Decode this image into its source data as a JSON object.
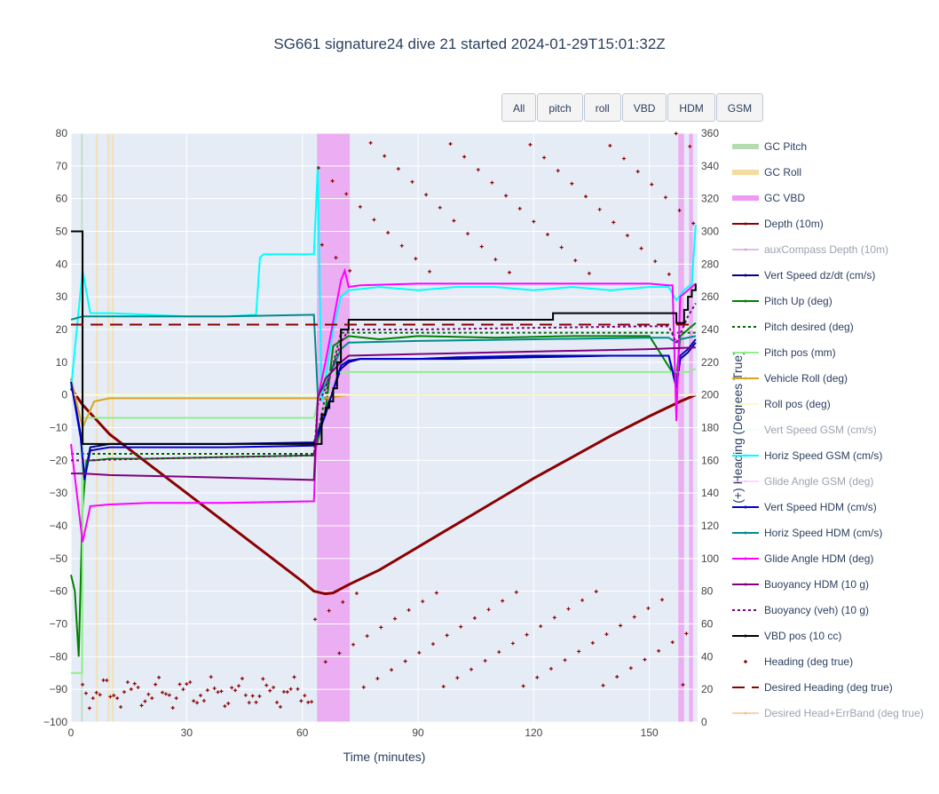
{
  "title": "SG661 signature24 dive 21 started 2024-01-29T15:01:32Z",
  "buttons": [
    "All",
    "pitch",
    "roll",
    "VBD",
    "HDM",
    "GSM"
  ],
  "chart_data": {
    "type": "line",
    "xlabel": "Time (minutes)",
    "ylabel": "",
    "y2label": "(+) Heading (Degrees True)",
    "xlim": [
      0,
      162.5
    ],
    "ylim": [
      -100,
      80
    ],
    "y2lim": [
      0,
      360
    ],
    "xticks": [
      0,
      30,
      60,
      90,
      120,
      150
    ],
    "yticks": [
      80,
      70,
      60,
      50,
      40,
      30,
      20,
      10,
      0,
      -10,
      -20,
      -30,
      -40,
      -50,
      -60,
      -70,
      -80,
      -90,
      -100
    ],
    "y2ticks": [
      360,
      340,
      320,
      300,
      280,
      260,
      240,
      220,
      200,
      180,
      160,
      140,
      120,
      100,
      80,
      60,
      40,
      20,
      0
    ],
    "grid": true,
    "legend_position": "right",
    "bands": [
      {
        "name": "GC Pitch",
        "color": "#b5dcb0",
        "x": [
          [
            2.6,
            3.0
          ]
        ]
      },
      {
        "name": "GC Roll",
        "color": "#f3dca0",
        "x": [
          [
            6.5,
            6.8
          ],
          [
            9.5,
            9.8
          ],
          [
            10.6,
            10.9
          ]
        ]
      },
      {
        "name": "GC VBD",
        "color": "#ee99f2",
        "x": [
          [
            63.8,
            72.3
          ],
          [
            157.5,
            159.0
          ],
          [
            160.3,
            161.3
          ]
        ]
      }
    ],
    "series": [
      {
        "name": "Depth (10m)",
        "color": "#8b0000",
        "x": [
          0,
          3,
          10,
          20,
          30,
          40,
          50,
          60,
          63,
          66,
          68,
          72,
          80,
          90,
          100,
          110,
          120,
          130,
          140,
          150,
          158,
          162
        ],
        "y": [
          2,
          -3,
          -12,
          -21,
          -30,
          -39,
          -48,
          -57,
          -60,
          -60.8,
          -60.5,
          -58,
          -53.5,
          -46.5,
          -39.5,
          -32.5,
          -25.5,
          -19,
          -12.5,
          -6.5,
          -2,
          0
        ]
      },
      {
        "name": "auxCompass Depth (10m)",
        "color": "#c77ddb",
        "visible": false,
        "x": [],
        "y": []
      },
      {
        "name": "Vert Speed dz/dt (cm/s)",
        "color": "#00008b",
        "x": [
          0,
          2.5,
          3.5,
          5,
          10,
          20,
          40,
          63,
          66,
          70,
          72,
          75,
          90,
          100,
          120,
          140,
          150,
          155,
          157,
          158,
          160,
          162
        ],
        "y": [
          5,
          -12,
          -25,
          -16,
          -15,
          -15,
          -15,
          -14.5,
          -5,
          8,
          10,
          11,
          11,
          11,
          11.5,
          12,
          12,
          12,
          2,
          11,
          13,
          16
        ]
      },
      {
        "name": "Pitch Up (deg)",
        "color": "#008000",
        "x": [
          0,
          1,
          2,
          3,
          4,
          6,
          10,
          20,
          40,
          63,
          66,
          68,
          72,
          80,
          90,
          110,
          130,
          150,
          157,
          158,
          160,
          162
        ],
        "y": [
          -55,
          -60,
          -80,
          -35,
          -20,
          -20,
          -19.5,
          -19.5,
          -19,
          -18.5,
          -5,
          15,
          18,
          17,
          18,
          17.5,
          18,
          18,
          5,
          18,
          20,
          22
        ]
      },
      {
        "name": "Pitch desired (deg)",
        "color": "#006400",
        "dash": "3,3",
        "x": [
          0,
          3,
          20,
          40,
          63,
          66,
          70,
          100,
          130,
          150,
          157,
          162
        ],
        "y": [
          -18,
          -18,
          -18,
          -18,
          -18,
          0,
          19,
          19,
          19,
          19,
          19,
          19
        ]
      },
      {
        "name": "Pitch pos (mm)",
        "color": "#90ee90",
        "x": [
          0,
          2.9,
          3.1,
          63,
          66,
          160,
          162
        ],
        "y": [
          -85,
          -85,
          -7,
          -7,
          7,
          7,
          8
        ]
      },
      {
        "name": "Vehicle Roll (deg)",
        "color": "#daa520",
        "x": [
          0,
          3,
          6,
          10,
          20,
          40,
          60,
          63,
          66,
          72,
          90,
          120,
          150,
          162
        ],
        "y": [
          5,
          -10,
          -2,
          -1,
          -1,
          -1,
          -1,
          -1,
          -1,
          0,
          0,
          0,
          0,
          0
        ]
      },
      {
        "name": "Roll pos (deg)",
        "color": "#fafad2",
        "x": [
          0,
          162
        ],
        "y": [
          0,
          0
        ]
      },
      {
        "name": "Vert Speed GSM (cm/s)",
        "color": "#e0ffff",
        "visible": false,
        "x": [],
        "y": []
      },
      {
        "name": "Horiz Speed GSM (cm/s)",
        "color": "#00ffff",
        "x": [
          0,
          3,
          5,
          10,
          20,
          30,
          40,
          48,
          49,
          50,
          55,
          60,
          63,
          64,
          65,
          66,
          68,
          70,
          72,
          80,
          90,
          100,
          110,
          120,
          130,
          140,
          150,
          155,
          157,
          159,
          161,
          162
        ],
        "y": [
          2,
          38,
          25,
          25,
          24.5,
          24,
          24,
          24.5,
          42,
          43,
          43,
          43,
          43,
          70,
          -2,
          5,
          20,
          30,
          32,
          33,
          32,
          33,
          33,
          32,
          33,
          32,
          33,
          33,
          29,
          32,
          34,
          52
        ]
      },
      {
        "name": "Glide Angle GSM (deg)",
        "color": "#ffb3ff",
        "visible": false,
        "x": [],
        "y": []
      },
      {
        "name": "Vert Speed HDM (cm/s)",
        "color": "#0000cd",
        "x": [
          0,
          2.5,
          3.5,
          5,
          10,
          20,
          40,
          63,
          66,
          70,
          72,
          75,
          90,
          100,
          120,
          140,
          150,
          155,
          157,
          158,
          160,
          162
        ],
        "y": [
          4,
          -13,
          -26,
          -17,
          -16,
          -16,
          -16,
          -15.5,
          -6,
          9,
          10.5,
          11,
          11,
          11.5,
          12,
          12,
          12,
          12,
          3,
          12,
          14,
          17
        ]
      },
      {
        "name": "Horiz Speed HDM (cm/s)",
        "color": "#008b8b",
        "x": [
          0,
          3,
          20,
          40,
          63,
          64,
          66,
          70,
          72,
          90,
          120,
          150,
          155,
          157,
          158,
          162
        ],
        "y": [
          23,
          24,
          24,
          24,
          24.5,
          0,
          3,
          14,
          16,
          16.5,
          17,
          17.5,
          17.5,
          16,
          17,
          18
        ]
      },
      {
        "name": "Glide Angle HDM (deg)",
        "color": "#ff00ff",
        "x": [
          0,
          3,
          5,
          10,
          20,
          40,
          63,
          64,
          66,
          70,
          71,
          72,
          75,
          90,
          110,
          130,
          150,
          155,
          156,
          157,
          158,
          162
        ],
        "y": [
          -15,
          -45,
          -34,
          -33.5,
          -33,
          -33,
          -32.5,
          -1,
          10,
          35,
          38,
          33,
          33.5,
          34,
          34,
          34,
          34,
          33.5,
          33.5,
          -8,
          30,
          34
        ]
      },
      {
        "name": "Buoyancy HDM (10 g)",
        "color": "#800080",
        "x": [
          0,
          3,
          10,
          30,
          63,
          64,
          66,
          70,
          72,
          90,
          110,
          130,
          150,
          162
        ],
        "y": [
          -24,
          -24,
          -24.5,
          -25,
          -26,
          -1,
          5,
          10,
          12,
          12.5,
          13,
          13.5,
          14,
          14.5
        ]
      },
      {
        "name": "Buoyancy (veh) (10 g)",
        "color": "#800080",
        "dash": "3,3",
        "x": [
          0,
          3,
          20,
          40,
          63,
          64,
          66,
          70,
          72,
          90,
          120,
          150,
          155,
          157,
          160,
          162
        ],
        "y": [
          -20,
          -20,
          -19.5,
          -19,
          -18.5,
          -3,
          2,
          16,
          20,
          20,
          20.5,
          21,
          21,
          16,
          24,
          28
        ]
      },
      {
        "name": "VBD pos (10 cc)",
        "color": "#000000",
        "shape": "hv",
        "x": [
          0,
          2.5,
          3,
          63,
          65,
          66,
          67,
          68,
          69,
          70,
          72,
          90,
          120,
          125,
          150,
          155,
          156,
          157,
          159,
          160,
          161,
          162
        ],
        "y": [
          50,
          50,
          -15,
          -15,
          -6,
          -4,
          -2,
          2,
          10,
          20,
          23,
          23,
          23,
          25,
          25,
          25,
          25,
          22,
          26,
          30,
          32,
          34
        ]
      },
      {
        "name": "Heading (deg true)",
        "color": "#8b0000",
        "markers": true,
        "axis": "y2",
        "x": [],
        "y": []
      },
      {
        "name": "Desired Heading (deg true)",
        "color": "#8b0000",
        "dash": "14,8",
        "axis": "y2",
        "x": [
          0,
          162
        ],
        "y": [
          243,
          243
        ]
      },
      {
        "name": "Desired Head+ErrBand (deg true)",
        "color": "#f4a460",
        "visible": false,
        "axis": "y2",
        "x": [],
        "y": []
      }
    ]
  }
}
